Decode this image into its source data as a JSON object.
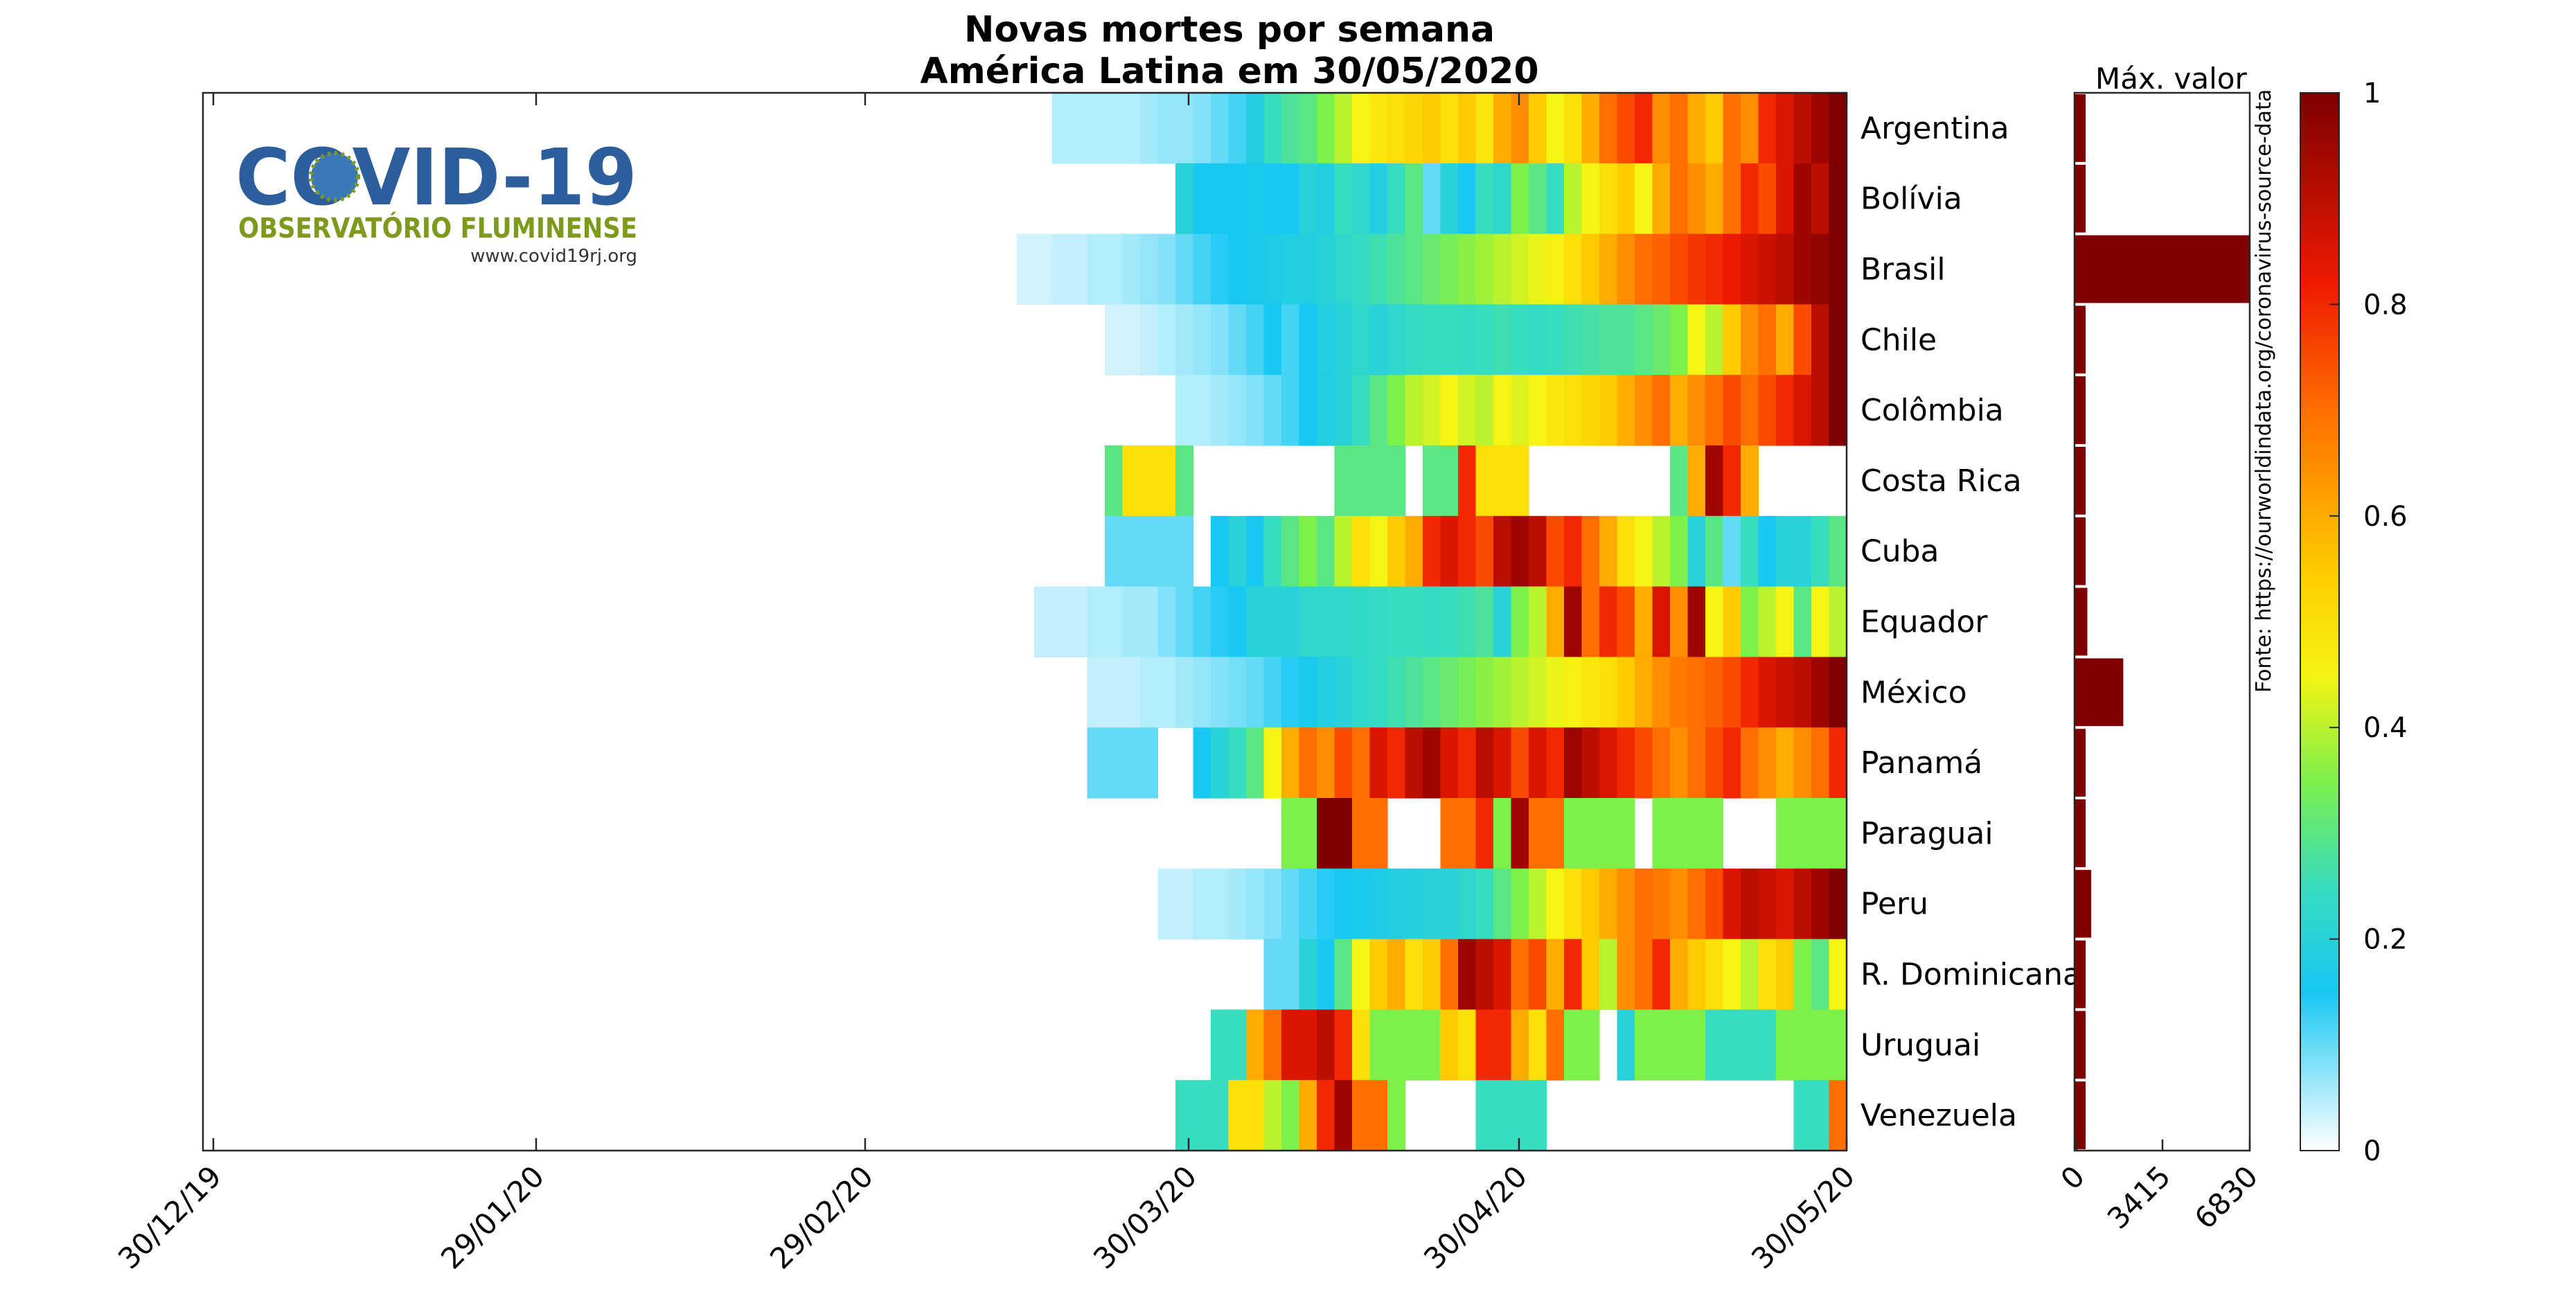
{
  "chart_data": {
    "type": "heatmap",
    "title_line1": "Novas mortes por semana",
    "title_line2": "América Latina em 30/05/2020",
    "source": "Fonte: https://ourworldindata.org/coronavirus-source-data",
    "logo": {
      "title": "COVID-19",
      "subtitle": "OBSERVATÓRIO FLUMINENSE",
      "url": "www.covid19rj.org"
    },
    "x_ticks": [
      "30/12/19",
      "29/01/20",
      "29/02/20",
      "30/03/20",
      "30/04/20",
      "30/05/20"
    ],
    "colorbar": {
      "range": [
        0,
        1
      ],
      "ticks": [
        "0",
        "0.2",
        "0.4",
        "0.6",
        "0.8",
        "1"
      ]
    },
    "bar_panel": {
      "label": "Máx. valor",
      "ticks": [
        "0",
        "3415",
        "6830"
      ],
      "xlim": [
        0,
        6830
      ]
    },
    "rows": [
      {
        "name": "Argentina",
        "max": 60,
        "start": 73,
        "values": [
          0.05,
          0.05,
          0.05,
          0.05,
          0.05,
          0.06,
          0.07,
          0.07,
          0.08,
          0.1,
          0.12,
          0.18,
          0.25,
          0.28,
          0.3,
          0.35,
          0.4,
          0.45,
          0.48,
          0.5,
          0.52,
          0.55,
          0.5,
          0.55,
          0.48,
          0.6,
          0.65,
          0.55,
          0.45,
          0.5,
          0.6,
          0.7,
          0.75,
          0.8,
          0.65,
          0.7,
          0.6,
          0.55,
          0.7,
          0.65,
          0.8,
          0.85,
          0.9,
          0.95,
          1.0
        ]
      },
      {
        "name": "Bolívia",
        "max": 40,
        "start": 91,
        "values": [
          0.2,
          0.15,
          0.15,
          0.15,
          0.16,
          0.15,
          0.15,
          0.2,
          0.18,
          0.25,
          0.22,
          0.18,
          0.25,
          0.3,
          0.1,
          0.2,
          0.15,
          0.25,
          0.22,
          0.35,
          0.3,
          0.25,
          0.4,
          0.45,
          0.5,
          0.55,
          0.45,
          0.6,
          0.7,
          0.65,
          0.6,
          0.7,
          0.8,
          0.75,
          0.85,
          0.95,
          0.9,
          1.0
        ]
      },
      {
        "name": "Brasil",
        "max": 6830,
        "start": 82,
        "values": [
          0.03,
          0.03,
          0.04,
          0.04,
          0.05,
          0.05,
          0.06,
          0.07,
          0.08,
          0.1,
          0.12,
          0.14,
          0.15,
          0.16,
          0.17,
          0.18,
          0.18,
          0.2,
          0.22,
          0.24,
          0.26,
          0.28,
          0.3,
          0.32,
          0.34,
          0.36,
          0.38,
          0.4,
          0.42,
          0.44,
          0.46,
          0.5,
          0.55,
          0.6,
          0.65,
          0.7,
          0.72,
          0.75,
          0.78,
          0.8,
          0.82,
          0.85,
          0.88,
          0.9,
          0.95,
          0.97,
          1.0
        ]
      },
      {
        "name": "Chile",
        "max": 80,
        "start": 83,
        "values": [
          0.03,
          0.03,
          0.04,
          0.05,
          0.06,
          0.07,
          0.08,
          0.1,
          0.12,
          0.15,
          0.12,
          0.15,
          0.18,
          0.2,
          0.22,
          0.2,
          0.22,
          0.24,
          0.25,
          0.25,
          0.24,
          0.25,
          0.26,
          0.25,
          0.24,
          0.25,
          0.26,
          0.27,
          0.28,
          0.28,
          0.3,
          0.32,
          0.35,
          0.45,
          0.4,
          0.55,
          0.65,
          0.7,
          0.6,
          0.75,
          0.9,
          1.0
        ]
      },
      {
        "name": "Colômbia",
        "max": 70,
        "start": 83,
        "values": [
          0.05,
          0.05,
          0.06,
          0.07,
          0.08,
          0.1,
          0.12,
          0.15,
          0.18,
          0.2,
          0.25,
          0.3,
          0.35,
          0.4,
          0.42,
          0.45,
          0.42,
          0.4,
          0.45,
          0.43,
          0.45,
          0.48,
          0.5,
          0.52,
          0.55,
          0.6,
          0.65,
          0.7,
          0.6,
          0.65,
          0.7,
          0.75,
          0.7,
          0.75,
          0.8,
          0.85,
          0.9,
          1.0
        ]
      },
      {
        "name": "Costa Rica",
        "max": 5,
        "start": 79,
        "values": [
          0.3,
          0.5,
          0.5,
          0.5,
          0.3,
          null,
          null,
          null,
          null,
          null,
          null,
          null,
          null,
          0.3,
          0.3,
          0.3,
          0.3,
          null,
          0.3,
          0.3,
          0.8,
          0.5,
          0.5,
          0.5,
          null,
          null,
          null,
          null,
          null,
          null,
          null,
          null,
          0.3,
          0.6,
          0.95,
          0.8,
          0.6,
          null,
          null,
          null,
          null,
          null
        ]
      },
      {
        "name": "Cuba",
        "max": 15,
        "start": 79,
        "values": [
          0.1,
          0.1,
          0.1,
          0.1,
          0.1,
          null,
          0.15,
          0.2,
          0.15,
          0.25,
          0.3,
          0.35,
          0.3,
          0.4,
          0.5,
          0.45,
          0.55,
          0.6,
          0.8,
          0.85,
          0.8,
          0.75,
          0.9,
          0.95,
          0.9,
          0.75,
          0.8,
          0.7,
          0.6,
          0.5,
          0.45,
          0.4,
          0.35,
          0.2,
          0.3,
          0.1,
          0.25,
          0.15,
          0.2,
          0.2,
          0.25,
          0.3
        ]
      },
      {
        "name": "Equador",
        "max": 500,
        "start": 76,
        "values": [
          0.04,
          0.04,
          0.04,
          0.05,
          0.05,
          0.06,
          0.06,
          0.08,
          0.1,
          0.12,
          0.14,
          0.15,
          0.2,
          0.2,
          0.2,
          0.22,
          0.22,
          0.22,
          0.23,
          0.24,
          0.25,
          0.25,
          0.24,
          0.25,
          0.26,
          0.28,
          0.2,
          0.35,
          0.4,
          0.6,
          0.95,
          0.7,
          0.8,
          0.75,
          0.6,
          0.85,
          0.65,
          0.95,
          0.45,
          0.55,
          0.35,
          0.4,
          0.45,
          0.3,
          0.45,
          0.4
        ]
      },
      {
        "name": "México",
        "max": 1900,
        "start": 85,
        "values": [
          0.04,
          0.04,
          0.04,
          0.05,
          0.05,
          0.06,
          0.07,
          0.08,
          0.09,
          0.1,
          0.12,
          0.14,
          0.16,
          0.18,
          0.2,
          0.22,
          0.24,
          0.26,
          0.28,
          0.3,
          0.32,
          0.34,
          0.36,
          0.38,
          0.4,
          0.42,
          0.44,
          0.46,
          0.48,
          0.5,
          0.55,
          0.6,
          0.65,
          0.68,
          0.7,
          0.72,
          0.75,
          0.8,
          0.85,
          0.88,
          0.9,
          0.95,
          1.0
        ]
      },
      {
        "name": "Panamá",
        "max": 50,
        "start": 74,
        "values": [
          0.1,
          0.1,
          0.1,
          0.1,
          null,
          null,
          0.15,
          0.2,
          0.25,
          0.3,
          0.45,
          0.6,
          0.7,
          0.65,
          0.75,
          0.7,
          0.85,
          0.8,
          0.9,
          0.95,
          0.85,
          0.8,
          0.9,
          0.85,
          0.75,
          0.85,
          0.8,
          0.95,
          0.9,
          0.85,
          0.8,
          0.75,
          0.7,
          0.65,
          0.7,
          0.75,
          0.8,
          0.7,
          0.65,
          0.6,
          0.65,
          0.7,
          0.8
        ]
      },
      {
        "name": "Paraguai",
        "max": 3,
        "start": 80,
        "values": [
          0.35,
          0.35,
          1.0,
          1.0,
          0.7,
          0.7,
          null,
          null,
          null,
          0.7,
          0.7,
          0.8,
          0.35,
          0.95,
          0.7,
          0.7,
          0.35,
          0.35,
          0.35,
          0.35,
          null,
          0.35,
          0.35,
          0.35,
          0.35,
          null,
          null,
          null,
          0.35,
          0.35,
          0.35,
          0.35
        ]
      },
      {
        "name": "Peru",
        "max": 650,
        "start": 81,
        "values": [
          0.04,
          0.04,
          0.05,
          0.05,
          0.06,
          0.07,
          0.08,
          0.1,
          0.12,
          0.14,
          0.15,
          0.16,
          0.17,
          0.18,
          0.19,
          0.2,
          0.2,
          0.22,
          0.25,
          0.3,
          0.35,
          0.4,
          0.45,
          0.5,
          0.55,
          0.6,
          0.65,
          0.7,
          0.68,
          0.65,
          0.7,
          0.75,
          0.85,
          0.9,
          0.88,
          0.85,
          0.9,
          0.95,
          1.0
        ]
      },
      {
        "name": "R. Dominicana",
        "max": 30,
        "start": 81,
        "values": [
          0.1,
          0.1,
          0.2,
          0.15,
          0.3,
          0.45,
          0.55,
          0.6,
          0.5,
          0.55,
          0.7,
          0.95,
          0.9,
          0.85,
          0.7,
          0.75,
          0.6,
          0.8,
          0.55,
          0.4,
          0.65,
          0.7,
          0.8,
          0.6,
          0.55,
          0.5,
          0.45,
          0.4,
          0.5,
          0.55,
          0.35,
          0.3,
          0.45
        ]
      },
      {
        "name": "Uruguai",
        "max": 3,
        "start": 90,
        "values": [
          0.25,
          0.25,
          0.6,
          0.7,
          0.85,
          0.85,
          0.9,
          0.8,
          0.5,
          0.35,
          0.35,
          0.35,
          0.35,
          0.55,
          0.5,
          0.8,
          0.8,
          0.6,
          0.5,
          0.7,
          0.35,
          0.35,
          null,
          0.2,
          0.35,
          0.35,
          0.35,
          0.35,
          0.25,
          0.25,
          0.25,
          0.25,
          0.35,
          0.35,
          0.35,
          0.35
        ]
      },
      {
        "name": "Venezuela",
        "max": 3,
        "start": 87,
        "values": [
          0.25,
          0.25,
          0.25,
          0.5,
          0.5,
          0.4,
          0.35,
          0.6,
          0.8,
          0.95,
          0.7,
          0.7,
          0.35,
          null,
          null,
          null,
          null,
          0.25,
          0.25,
          0.25,
          0.25,
          null,
          null,
          null,
          null,
          null,
          null,
          null,
          null,
          null,
          null,
          null,
          null,
          null,
          null,
          0.25,
          0.25,
          0.7
        ]
      }
    ]
  }
}
